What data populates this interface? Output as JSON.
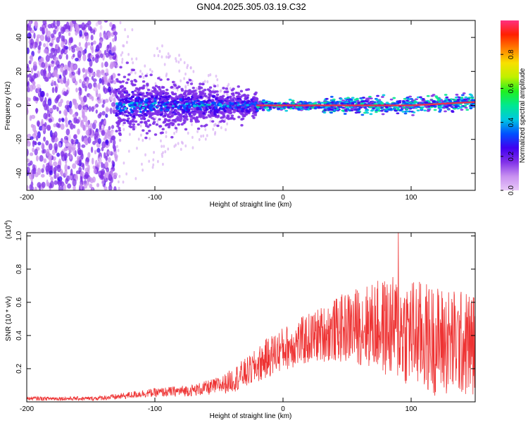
{
  "title": "GN04.2025.305.03.19.C32",
  "colorbar": {
    "label": "Normalized spectral amplitude",
    "ticks": [
      "0.0",
      "0.2",
      "0.4",
      "0.6",
      "0.8"
    ],
    "tick_values": [
      0.0,
      0.2,
      0.4,
      0.6,
      0.8
    ],
    "range": [
      0,
      1
    ],
    "colors": [
      "#e8c8f8",
      "#c890f0",
      "#8030e8",
      "#4000f0",
      "#0050ff",
      "#00c8e0",
      "#00e890",
      "#20f020",
      "#c0f000",
      "#f8e000",
      "#ff8000",
      "#ff2000",
      "#ff3080"
    ]
  },
  "chart_data": [
    {
      "type": "heatmap",
      "name": "spectrogram",
      "xlabel": "Height of straight line (km)",
      "ylabel": "Frequency (Hz)",
      "xlim": [
        -200,
        150
      ],
      "ylim": [
        -50,
        50
      ],
      "xticks": [
        -200,
        -100,
        0,
        100
      ],
      "xtick_labels": [
        "-200",
        "-100",
        "0",
        "100"
      ],
      "yticks": [
        -40,
        -20,
        0,
        20,
        40
      ],
      "ytick_labels": [
        "-40",
        "-20",
        "0",
        "20",
        "40"
      ],
      "description_values": {
        "noise_region_x": [
          -200,
          -130
        ],
        "broadband_region_x": [
          -130,
          -20
        ],
        "peak_line_x": [
          -20,
          150
        ],
        "peak_frequency_hz": 0,
        "peak_frequency_end_hz": 2
      }
    },
    {
      "type": "line",
      "name": "snr",
      "xlabel": "Height of straight line (km)",
      "ylabel": "SNR (10 * v/v)",
      "yscale_label": "(x10",
      "yscale_exp": "4",
      "yscale_close": ")",
      "xlim": [
        -200,
        150
      ],
      "ylim": [
        0,
        1.02
      ],
      "xticks": [
        -200,
        -100,
        0,
        100
      ],
      "xtick_labels": [
        "-200",
        "-100",
        "0",
        "100"
      ],
      "yticks": [
        0.2,
        0.4,
        0.6,
        0.8,
        1.0
      ],
      "ytick_labels": [
        "0.2",
        "0.4",
        "0.6",
        "0.8",
        "1.0"
      ],
      "color": "#ee3333",
      "envelope": {
        "x": [
          -200,
          -150,
          -130,
          -110,
          -90,
          -70,
          -55,
          -45,
          -35,
          -25,
          -15,
          -5,
          0,
          10,
          20,
          30,
          40,
          50,
          60,
          70,
          80,
          90,
          100,
          110,
          120,
          130,
          140,
          150
        ],
        "mean": [
          0.02,
          0.02,
          0.03,
          0.05,
          0.06,
          0.07,
          0.09,
          0.11,
          0.15,
          0.19,
          0.25,
          0.3,
          0.32,
          0.35,
          0.38,
          0.41,
          0.43,
          0.45,
          0.46,
          0.46,
          0.45,
          0.44,
          0.42,
          0.39,
          0.37,
          0.36,
          0.35,
          0.35
        ],
        "spread": [
          0.01,
          0.01,
          0.015,
          0.02,
          0.025,
          0.03,
          0.04,
          0.05,
          0.07,
          0.08,
          0.1,
          0.11,
          0.11,
          0.12,
          0.13,
          0.14,
          0.16,
          0.18,
          0.2,
          0.22,
          0.25,
          0.27,
          0.28,
          0.28,
          0.28,
          0.28,
          0.27,
          0.27
        ]
      },
      "peak": {
        "x": 90,
        "y": 1.02
      }
    }
  ]
}
